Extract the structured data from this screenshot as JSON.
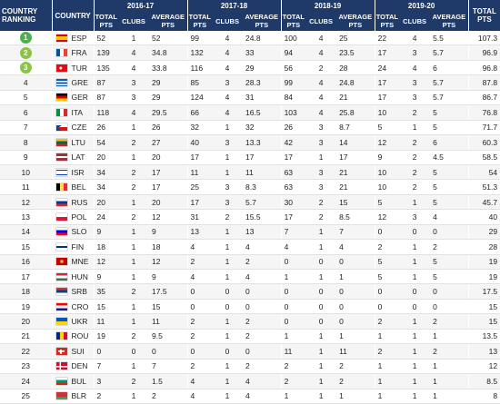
{
  "header": {
    "rank_label": "COUNTRY RANKING",
    "country_label": "COUNTRY",
    "seasons": [
      "2016-17",
      "2017-18",
      "2018-19",
      "2019-20"
    ],
    "total_pts_label": "TOTAL PTS",
    "clubs_label": "CLUBS",
    "average_pts_label": "AVERAGE PTS",
    "overall_total_label": "TOTAL PTS"
  },
  "colors": {
    "header_bg": "#1f3a68",
    "rank_top1": "#4caf50",
    "rank_top2": "#8bc34a",
    "rank_top3": "#8bc34a"
  },
  "rows": [
    {
      "rank": "1",
      "code": "ESP",
      "flag": "es-flag",
      "s": [
        [
          "52",
          "1",
          "52"
        ],
        [
          "99",
          "4",
          "24.8"
        ],
        [
          "100",
          "4",
          "25"
        ],
        [
          "22",
          "4",
          "5.5"
        ]
      ],
      "total": "107.3"
    },
    {
      "rank": "2",
      "code": "FRA",
      "flag": "fr-flag",
      "s": [
        [
          "139",
          "4",
          "34.8"
        ],
        [
          "132",
          "4",
          "33"
        ],
        [
          "94",
          "4",
          "23.5"
        ],
        [
          "17",
          "3",
          "5.7"
        ]
      ],
      "total": "96.9"
    },
    {
      "rank": "3",
      "code": "TUR",
      "flag": "tr-flag",
      "s": [
        [
          "135",
          "4",
          "33.8"
        ],
        [
          "116",
          "4",
          "29"
        ],
        [
          "56",
          "2",
          "28"
        ],
        [
          "24",
          "4",
          "6"
        ]
      ],
      "total": "96.8"
    },
    {
      "rank": "4",
      "code": "GRE",
      "flag": "gr-flag",
      "s": [
        [
          "87",
          "3",
          "29"
        ],
        [
          "85",
          "3",
          "28.3"
        ],
        [
          "99",
          "4",
          "24.8"
        ],
        [
          "17",
          "3",
          "5.7"
        ]
      ],
      "total": "87.8"
    },
    {
      "rank": "5",
      "code": "GER",
      "flag": "de-flag",
      "s": [
        [
          "87",
          "3",
          "29"
        ],
        [
          "124",
          "4",
          "31"
        ],
        [
          "84",
          "4",
          "21"
        ],
        [
          "17",
          "3",
          "5.7"
        ]
      ],
      "total": "86.7"
    },
    {
      "rank": "6",
      "code": "ITA",
      "flag": "it-flag",
      "s": [
        [
          "118",
          "4",
          "29.5"
        ],
        [
          "66",
          "4",
          "16.5"
        ],
        [
          "103",
          "4",
          "25.8"
        ],
        [
          "10",
          "2",
          "5"
        ]
      ],
      "total": "76.8"
    },
    {
      "rank": "7",
      "code": "CZE",
      "flag": "cz-flag",
      "s": [
        [
          "26",
          "1",
          "26"
        ],
        [
          "32",
          "1",
          "32"
        ],
        [
          "26",
          "3",
          "8.7"
        ],
        [
          "5",
          "1",
          "5"
        ]
      ],
      "total": "71.7"
    },
    {
      "rank": "8",
      "code": "LTU",
      "flag": "lt-flag",
      "s": [
        [
          "54",
          "2",
          "27"
        ],
        [
          "40",
          "3",
          "13.3"
        ],
        [
          "42",
          "3",
          "14"
        ],
        [
          "12",
          "2",
          "6"
        ]
      ],
      "total": "60.3"
    },
    {
      "rank": "9",
      "code": "LAT",
      "flag": "lv-flag",
      "s": [
        [
          "20",
          "1",
          "20"
        ],
        [
          "17",
          "1",
          "17"
        ],
        [
          "17",
          "1",
          "17"
        ],
        [
          "9",
          "2",
          "4.5"
        ]
      ],
      "total": "58.5"
    },
    {
      "rank": "10",
      "code": "ISR",
      "flag": "il-flag",
      "s": [
        [
          "34",
          "2",
          "17"
        ],
        [
          "11",
          "1",
          "11"
        ],
        [
          "63",
          "3",
          "21"
        ],
        [
          "10",
          "2",
          "5"
        ]
      ],
      "total": "54"
    },
    {
      "rank": "11",
      "code": "BEL",
      "flag": "be-flag",
      "s": [
        [
          "34",
          "2",
          "17"
        ],
        [
          "25",
          "3",
          "8.3"
        ],
        [
          "63",
          "3",
          "21"
        ],
        [
          "10",
          "2",
          "5"
        ]
      ],
      "total": "51.3"
    },
    {
      "rank": "12",
      "code": "RUS",
      "flag": "ru-flag",
      "s": [
        [
          "20",
          "1",
          "20"
        ],
        [
          "17",
          "3",
          "5.7"
        ],
        [
          "30",
          "2",
          "15"
        ],
        [
          "5",
          "1",
          "5"
        ]
      ],
      "total": "45.7"
    },
    {
      "rank": "13",
      "code": "POL",
      "flag": "pl-flag",
      "s": [
        [
          "24",
          "2",
          "12"
        ],
        [
          "31",
          "2",
          "15.5"
        ],
        [
          "17",
          "2",
          "8.5"
        ],
        [
          "12",
          "3",
          "4"
        ]
      ],
      "total": "40"
    },
    {
      "rank": "14",
      "code": "SLO",
      "flag": "si-flag",
      "s": [
        [
          "9",
          "1",
          "9"
        ],
        [
          "13",
          "1",
          "13"
        ],
        [
          "7",
          "1",
          "7"
        ],
        [
          "0",
          "0",
          "0"
        ]
      ],
      "total": "29"
    },
    {
      "rank": "15",
      "code": "FIN",
      "flag": "fi-flag",
      "s": [
        [
          "18",
          "1",
          "18"
        ],
        [
          "4",
          "1",
          "4"
        ],
        [
          "4",
          "1",
          "4"
        ],
        [
          "2",
          "1",
          "2"
        ]
      ],
      "total": "28"
    },
    {
      "rank": "16",
      "code": "MNE",
      "flag": "me-flag",
      "s": [
        [
          "12",
          "1",
          "12"
        ],
        [
          "2",
          "1",
          "2"
        ],
        [
          "0",
          "0",
          "0"
        ],
        [
          "5",
          "1",
          "5"
        ]
      ],
      "total": "19"
    },
    {
      "rank": "17",
      "code": "HUN",
      "flag": "hu-flag",
      "s": [
        [
          "9",
          "1",
          "9"
        ],
        [
          "4",
          "1",
          "4"
        ],
        [
          "1",
          "1",
          "1"
        ],
        [
          "5",
          "1",
          "5"
        ]
      ],
      "total": "19"
    },
    {
      "rank": "18",
      "code": "SRB",
      "flag": "rs-flag",
      "s": [
        [
          "35",
          "2",
          "17.5"
        ],
        [
          "0",
          "0",
          "0"
        ],
        [
          "0",
          "0",
          "0"
        ],
        [
          "0",
          "0",
          "0"
        ]
      ],
      "total": "17.5"
    },
    {
      "rank": "19",
      "code": "CRO",
      "flag": "hr-flag",
      "s": [
        [
          "15",
          "1",
          "15"
        ],
        [
          "0",
          "0",
          "0"
        ],
        [
          "0",
          "0",
          "0"
        ],
        [
          "0",
          "0",
          "0"
        ]
      ],
      "total": "15"
    },
    {
      "rank": "20",
      "code": "UKR",
      "flag": "ua-flag",
      "s": [
        [
          "11",
          "1",
          "11"
        ],
        [
          "2",
          "1",
          "2"
        ],
        [
          "0",
          "0",
          "0"
        ],
        [
          "2",
          "1",
          "2"
        ]
      ],
      "total": "15"
    },
    {
      "rank": "21",
      "code": "ROU",
      "flag": "ro-flag",
      "s": [
        [
          "19",
          "2",
          "9.5"
        ],
        [
          "2",
          "1",
          "2"
        ],
        [
          "1",
          "1",
          "1"
        ],
        [
          "1",
          "1",
          "1"
        ]
      ],
      "total": "13.5"
    },
    {
      "rank": "22",
      "code": "SUI",
      "flag": "ch-flag",
      "s": [
        [
          "0",
          "0",
          "0"
        ],
        [
          "0",
          "0",
          "0"
        ],
        [
          "11",
          "1",
          "11"
        ],
        [
          "2",
          "1",
          "2"
        ]
      ],
      "total": "13"
    },
    {
      "rank": "23",
      "code": "DEN",
      "flag": "dk-flag",
      "s": [
        [
          "7",
          "1",
          "7"
        ],
        [
          "2",
          "1",
          "2"
        ],
        [
          "2",
          "1",
          "2"
        ],
        [
          "1",
          "1",
          "1"
        ]
      ],
      "total": "12"
    },
    {
      "rank": "24",
      "code": "BUL",
      "flag": "bg-flag",
      "s": [
        [
          "3",
          "2",
          "1.5"
        ],
        [
          "4",
          "1",
          "4"
        ],
        [
          "2",
          "1",
          "2"
        ],
        [
          "1",
          "1",
          "1"
        ]
      ],
      "total": "8.5"
    },
    {
      "rank": "25",
      "code": "BLR",
      "flag": "by-flag",
      "s": [
        [
          "2",
          "1",
          "2"
        ],
        [
          "4",
          "1",
          "4"
        ],
        [
          "1",
          "1",
          "1"
        ],
        [
          "1",
          "1",
          "1"
        ]
      ],
      "total": "8"
    }
  ]
}
